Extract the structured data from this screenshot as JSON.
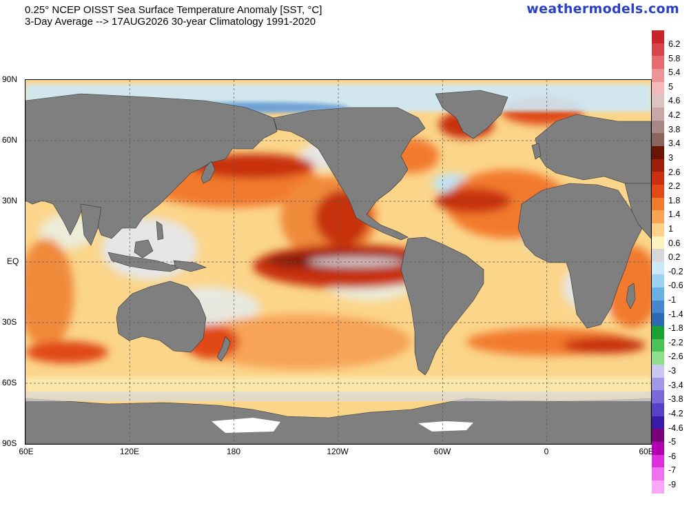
{
  "title": {
    "line1": "0.25° NCEP OISST Sea Surface Temperature Anomaly [SST, °C]",
    "line2": "3-Day Average --> 17AUG2026   30-year Climatology 1991-2020"
  },
  "brand": "weathermodels.com",
  "map": {
    "projection": "Equirectangular, 60°E central edge",
    "lon_extent": [
      60,
      420
    ],
    "lat_extent": [
      -90,
      90
    ],
    "lat_labels": [
      "90N",
      "60N",
      "30N",
      "EQ",
      "30S",
      "60S",
      "90S"
    ],
    "lon_labels": [
      "60E",
      "120E",
      "180",
      "120W",
      "60W",
      "0",
      "60E"
    ],
    "land_color": "#7f7f7f",
    "ice_color": "#d8d8d8"
  },
  "colorbar": {
    "labels": [
      "6.2",
      "5.8",
      "5.4",
      "5",
      "4.6",
      "4.2",
      "3.8",
      "3.4",
      "3",
      "2.6",
      "2.2",
      "1.8",
      "1.4",
      "1",
      "0.6",
      "0.2",
      "-0.2",
      "-0.6",
      "-1",
      "-1.4",
      "-1.8",
      "-2.2",
      "-2.6",
      "-3",
      "-3.4",
      "-3.8",
      "-4.2",
      "-4.6",
      "-5",
      "-6",
      "-7",
      "-9"
    ],
    "colors": [
      "#c8242c",
      "#d8454c",
      "#e46c70",
      "#ec9496",
      "#f2babb",
      "#dcc4c4",
      "#c8a8a6",
      "#a88884",
      "#8a6560",
      "#6a1406",
      "#a01e0c",
      "#c83010",
      "#e04a16",
      "#f27a2e",
      "#f8a456",
      "#fcd28a",
      "#fcf3c0",
      "#d8d8d8",
      "#cde9f8",
      "#9ed0f0",
      "#6ab0e2",
      "#4a86cc",
      "#2e6ab4",
      "#1aa034",
      "#4ac256",
      "#8ede8c",
      "#c8c8f0",
      "#a09ae6",
      "#7a6ad8",
      "#5a40c6",
      "#3a1aa8",
      "#7a007a",
      "#b000b0",
      "#dc30dc",
      "#f070f0",
      "#f8a8f8"
    ]
  }
}
